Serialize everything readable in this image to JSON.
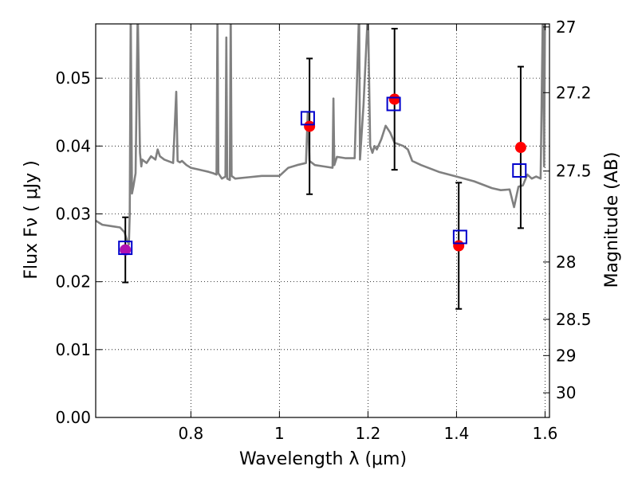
{
  "chart_data": {
    "type": "scatter",
    "xlabel": "Wavelength  λ (μm)",
    "ylabel": "Flux  Fν  ( μJy )",
    "y2label": "Magnitude (AB)",
    "xlim": [
      0.585,
      1.61
    ],
    "ylim": [
      0.0,
      0.058
    ],
    "grid": true,
    "x_ticks": [
      0.8,
      1.0,
      1.2,
      1.4,
      1.6
    ],
    "x_tick_labels": [
      "0.8",
      "1",
      "1.2",
      "1.4",
      "1.6"
    ],
    "y_ticks": [
      0.0,
      0.01,
      0.02,
      0.03,
      0.04,
      0.05
    ],
    "y_tick_labels": [
      "0.00",
      "0.01",
      "0.02",
      "0.03",
      "0.04",
      "0.05"
    ],
    "mag_ticks": [
      27,
      27.2,
      27.5,
      28,
      28.5,
      29,
      30
    ],
    "mag_tick_labels": [
      "27",
      "27.2",
      "27.5",
      "28",
      "28.5",
      "29",
      "30"
    ],
    "colors": {
      "spectrum": "#808080",
      "observed": "#ff0000",
      "model": "#0000cc",
      "errorbar": "#000000",
      "overlap": "#b010b0"
    },
    "series": [
      {
        "role": "model_spectrum",
        "style": "line",
        "x": [
          0.585,
          0.6,
          0.62,
          0.64,
          0.65,
          0.655,
          0.66,
          0.662,
          0.664,
          0.667,
          0.67,
          0.675,
          0.68,
          0.685,
          0.688,
          0.69,
          0.7,
          0.71,
          0.72,
          0.725,
          0.73,
          0.74,
          0.76,
          0.767,
          0.77,
          0.775,
          0.78,
          0.79,
          0.8,
          0.82,
          0.84,
          0.85,
          0.858,
          0.86,
          0.862,
          0.87,
          0.878,
          0.88,
          0.882,
          0.888,
          0.89,
          0.892,
          0.9,
          0.93,
          0.96,
          1.0,
          1.02,
          1.04,
          1.06,
          1.064,
          1.068,
          1.08,
          1.1,
          1.12,
          1.122,
          1.124,
          1.13,
          1.15,
          1.17,
          1.18,
          1.182,
          1.19,
          1.2,
          1.205,
          1.21,
          1.215,
          1.22,
          1.23,
          1.24,
          1.25,
          1.26,
          1.28,
          1.29,
          1.3,
          1.32,
          1.36,
          1.4,
          1.44,
          1.48,
          1.5,
          1.52,
          1.53,
          1.54,
          1.55,
          1.56,
          1.57,
          1.58,
          1.59,
          1.595,
          1.598,
          1.6,
          1.61
        ],
        "y": [
          0.029,
          0.0284,
          0.0282,
          0.028,
          0.0273,
          0.0262,
          0.0255,
          0.03,
          0.06,
          0.033,
          0.034,
          0.036,
          0.06,
          0.039,
          0.037,
          0.038,
          0.0375,
          0.0385,
          0.038,
          0.0395,
          0.0385,
          0.038,
          0.0375,
          0.048,
          0.0378,
          0.0376,
          0.0378,
          0.0372,
          0.0368,
          0.0365,
          0.0362,
          0.036,
          0.0358,
          0.06,
          0.036,
          0.0352,
          0.0355,
          0.056,
          0.0352,
          0.035,
          0.06,
          0.0356,
          0.0352,
          0.0354,
          0.0356,
          0.0356,
          0.0368,
          0.0372,
          0.0375,
          0.045,
          0.0378,
          0.0372,
          0.037,
          0.0368,
          0.047,
          0.0372,
          0.0384,
          0.0382,
          0.0382,
          0.06,
          0.038,
          0.046,
          0.06,
          0.04,
          0.039,
          0.04,
          0.0395,
          0.041,
          0.043,
          0.042,
          0.0405,
          0.04,
          0.0395,
          0.0378,
          0.0372,
          0.0362,
          0.0355,
          0.0348,
          0.0338,
          0.0335,
          0.0336,
          0.031,
          0.034,
          0.0342,
          0.0358,
          0.0352,
          0.0355,
          0.0352,
          0.06,
          0.037,
          0.06,
          0.06
        ]
      },
      {
        "role": "observed",
        "style": "filled-circle",
        "x": [
          0.652,
          1.068,
          1.26,
          1.405,
          1.545
        ],
        "y": [
          0.0247,
          0.0429,
          0.0469,
          0.0253,
          0.0398
        ],
        "yerr": [
          0.0048,
          0.01,
          0.0104,
          0.0093,
          0.0119
        ]
      },
      {
        "role": "model_synthetic",
        "style": "open-square",
        "x": [
          0.652,
          1.064,
          1.258,
          1.408,
          1.542
        ],
        "y": [
          0.025,
          0.0441,
          0.0462,
          0.0266,
          0.0364
        ]
      }
    ]
  }
}
